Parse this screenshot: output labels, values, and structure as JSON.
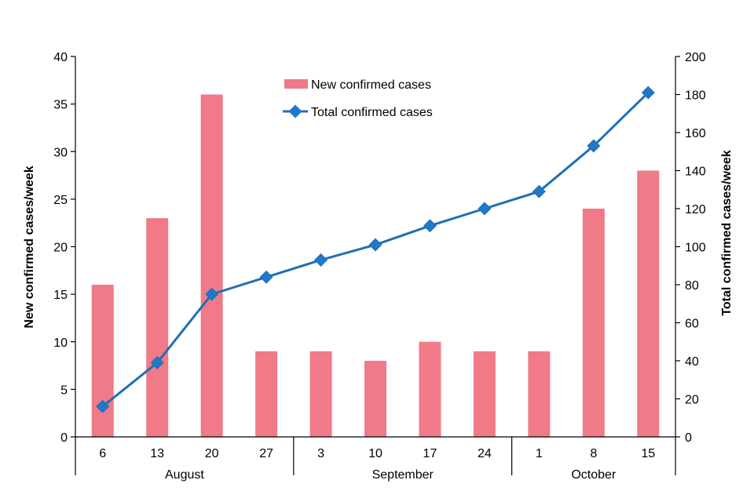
{
  "chart_data": {
    "type": "bar+line",
    "title": "",
    "categories": [
      "6",
      "13",
      "20",
      "27",
      "3",
      "10",
      "17",
      "24",
      "1",
      "8",
      "15"
    ],
    "groups": [
      {
        "label": "August",
        "count": 4
      },
      {
        "label": "September",
        "count": 4
      },
      {
        "label": "October",
        "count": 3
      }
    ],
    "series": [
      {
        "name": "New confirmed cases",
        "type": "bar",
        "axis": "left",
        "values": [
          16,
          23,
          36,
          9,
          9,
          8,
          10,
          9,
          9,
          24,
          28
        ]
      },
      {
        "name": "Total confirmed cases",
        "type": "line",
        "axis": "right",
        "values": [
          16,
          39,
          75,
          84,
          93,
          101,
          111,
          120,
          129,
          153,
          181
        ]
      }
    ],
    "ylabel_left": "New confirmed cases/week",
    "ylabel_right": "Total confirmed cases/week",
    "ylim_left": [
      0,
      40
    ],
    "ylim_right": [
      0,
      200
    ],
    "yticks_left": [
      "0",
      "5",
      "10",
      "15",
      "20",
      "25",
      "30",
      "35",
      "40"
    ],
    "yticks_right": [
      "0",
      "20",
      "40",
      "60",
      "80",
      "100",
      "120",
      "140",
      "160",
      "180",
      "200"
    ],
    "legend_position": "top-center",
    "grid": false,
    "colors": {
      "bar": "#f07a87",
      "line": "#1f6fb5",
      "marker": "#1f78c8",
      "axis": "#000000"
    }
  }
}
